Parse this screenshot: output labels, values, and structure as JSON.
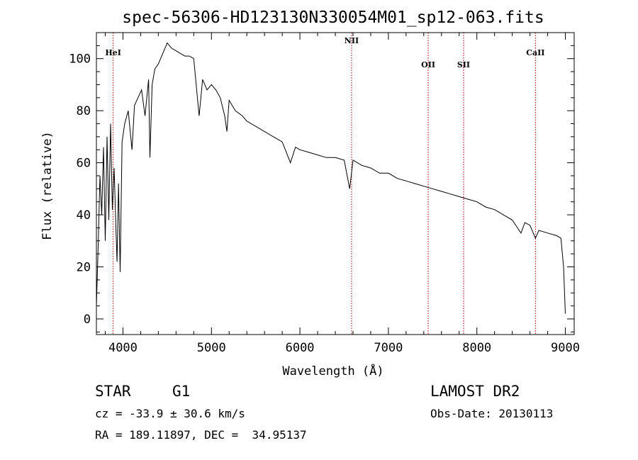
{
  "chart_data": {
    "type": "line",
    "title": "spec-56306-HD123130N330054M01_sp12-063.fits",
    "xlabel": "Wavelength (Å)",
    "ylabel": "Flux (relative)",
    "xlim": [
      3700,
      9100
    ],
    "ylim": [
      -6,
      110
    ],
    "xticks": [
      4000,
      5000,
      6000,
      7000,
      8000,
      9000
    ],
    "yticks": [
      0,
      20,
      40,
      60,
      80,
      100
    ],
    "lines": [
      {
        "name": "HeI",
        "x": 3889
      },
      {
        "name": "NII",
        "x": 6584
      },
      {
        "name": "OII",
        "x": 7450
      },
      {
        "name": "SII",
        "x": 7850
      },
      {
        "name": "CaII",
        "x": 8662
      }
    ],
    "series": [
      {
        "name": "flux",
        "x": [
          3700,
          3720,
          3740,
          3760,
          3780,
          3800,
          3820,
          3840,
          3860,
          3880,
          3900,
          3920,
          3933,
          3950,
          3968,
          3990,
          4020,
          4060,
          4102,
          4130,
          4170,
          4210,
          4250,
          4290,
          4305,
          4330,
          4360,
          4400,
          4450,
          4500,
          4550,
          4600,
          4650,
          4700,
          4750,
          4800,
          4861,
          4900,
          4950,
          5000,
          5050,
          5100,
          5150,
          5175,
          5200,
          5270,
          5350,
          5400,
          5500,
          5600,
          5700,
          5800,
          5893,
          5950,
          6000,
          6100,
          6200,
          6300,
          6400,
          6500,
          6563,
          6600,
          6700,
          6800,
          6900,
          7000,
          7100,
          7200,
          7300,
          7400,
          7500,
          7600,
          7700,
          7800,
          7900,
          8000,
          8100,
          8200,
          8300,
          8400,
          8498,
          8542,
          8600,
          8662,
          8700,
          8800,
          8900,
          8950,
          8980,
          9000
        ],
        "y": [
          5,
          28,
          55,
          40,
          66,
          30,
          70,
          38,
          75,
          42,
          58,
          35,
          22,
          52,
          18,
          68,
          75,
          80,
          65,
          82,
          85,
          88,
          78,
          92,
          62,
          90,
          96,
          98,
          102,
          106,
          104,
          103,
          102,
          101,
          101,
          100,
          78,
          92,
          88,
          90,
          88,
          85,
          78,
          72,
          84,
          80,
          78,
          76,
          74,
          72,
          70,
          68,
          60,
          66,
          65,
          64,
          63,
          62,
          62,
          61,
          50,
          61,
          59,
          58,
          56,
          56,
          54,
          53,
          52,
          51,
          50,
          49,
          48,
          47,
          46,
          45,
          43,
          42,
          40,
          38,
          33,
          37,
          36,
          31,
          34,
          33,
          32,
          31,
          20,
          2
        ]
      }
    ]
  },
  "info": {
    "object_class": "STAR",
    "subclass": "G1",
    "survey": "LAMOST DR2",
    "redshift": "cz = -33.9 ± 30.6 km/s",
    "obs_date": "Obs-Date: 20130113",
    "coords": "RA = 189.11897, DEC =  34.95137"
  }
}
